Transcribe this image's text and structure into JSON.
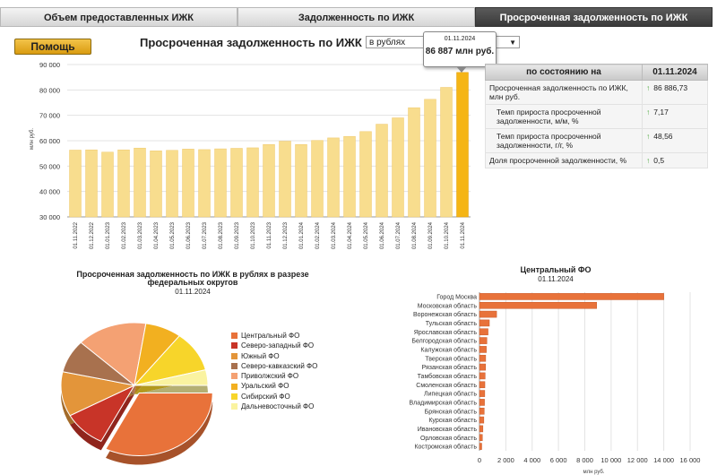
{
  "tabs": [
    {
      "label": "Объем предоставленных ИЖК"
    },
    {
      "label": "Задолженность по ИЖК"
    },
    {
      "label": "Просроченная задолженность по ИЖК"
    }
  ],
  "help_label": "Помощь",
  "title": "Просроченная задолженность по ИЖК",
  "currency": {
    "selected": "в рублях"
  },
  "tooltip": {
    "date": "01.11.2024",
    "value": "86 887 млн руб."
  },
  "info": {
    "header_label": "по состоянию на",
    "header_date": "01.11.2024",
    "rows": [
      {
        "label": "Просроченная задолженность по ИЖК, млн руб.",
        "value": "86 886,73"
      },
      {
        "label": "Темп прироста просроченной задолженности, м/м, %",
        "value": "7,17"
      },
      {
        "label": "Темп прироста просроченной задолженности, г/г, %",
        "value": "48,56"
      },
      {
        "label": "Доля просроченной задолженности, %",
        "value": "0,5"
      }
    ],
    "arrow": "↑"
  },
  "chart_data": [
    {
      "type": "bar",
      "ylabel": "млн руб.",
      "ylim": [
        30000,
        90000
      ],
      "yticks": [
        "30 000",
        "40 000",
        "50 000",
        "60 000",
        "70 000",
        "80 000",
        "90 000"
      ],
      "categories": [
        "01.11.2022",
        "01.12.2022",
        "01.01.2023",
        "01.02.2023",
        "01.03.2023",
        "01.04.2023",
        "01.05.2023",
        "01.06.2023",
        "01.07.2023",
        "01.08.2023",
        "01.09.2023",
        "01.10.2023",
        "01.11.2023",
        "01.12.2023",
        "01.01.2024",
        "01.02.2024",
        "01.03.2024",
        "01.04.2024",
        "01.05.2024",
        "01.06.2024",
        "01.07.2024",
        "01.08.2024",
        "01.09.2024",
        "01.10.2024",
        "01.11.2024"
      ],
      "values": [
        56300,
        56400,
        55500,
        56400,
        57100,
        56000,
        56200,
        56700,
        56500,
        56800,
        57000,
        57200,
        58500,
        59800,
        58500,
        60100,
        61100,
        61700,
        63600,
        66500,
        69000,
        73000,
        76300,
        81000,
        86887
      ],
      "highlight_color": "#f5b515",
      "bar_color": "#f8dd8e",
      "grid": true
    },
    {
      "type": "pie",
      "title": "Просроченная задолженность по ИЖК в рублях в разрезе федеральных округов",
      "date": "01.11.2024",
      "legend_position": "right",
      "slices": [
        {
          "name": "Центральный ФО",
          "value": 32.5,
          "color": "#e8723a"
        },
        {
          "name": "Северо-западный ФО",
          "value": 9.5,
          "color": "#c83428"
        },
        {
          "name": "Южный ФО",
          "value": 11.5,
          "color": "#e3953a"
        },
        {
          "name": "Северо-кавказский ФО",
          "value": 8.5,
          "color": "#a8714e"
        },
        {
          "name": "Приволжский ФО",
          "value": 15.5,
          "color": "#f4a173"
        },
        {
          "name": "Уральский ФО",
          "value": 8.0,
          "color": "#f2b020"
        },
        {
          "name": "Сибирский ФО",
          "value": 10.5,
          "color": "#f7d52a"
        },
        {
          "name": "Дальневосточный ФО",
          "value": 4.0,
          "color": "#faf3a0"
        }
      ]
    },
    {
      "type": "bar",
      "orientation": "horizontal",
      "title": "Центральный ФО",
      "date": "01.11.2024",
      "xlabel": "млн руб.",
      "xlim": [
        0,
        16000
      ],
      "xticks": [
        "0",
        "2 000",
        "4 000",
        "6 000",
        "8 000",
        "10 000",
        "12 000",
        "14 000",
        "16 000"
      ],
      "categories": [
        "Город Москва",
        "Московская область",
        "Воронежская область",
        "Тульская область",
        "Ярославская область",
        "Белгородская область",
        "Калужская область",
        "Тверская область",
        "Рязанская область",
        "Тамбовская область",
        "Смоленская область",
        "Липецкая область",
        "Владимирская область",
        "Брянская область",
        "Курская область",
        "Ивановская область",
        "Орловская область",
        "Костромская область"
      ],
      "values": [
        14000,
        8900,
        1300,
        750,
        650,
        560,
        520,
        470,
        460,
        430,
        410,
        400,
        380,
        360,
        330,
        260,
        220,
        170
      ],
      "bar_color": "#e8723a"
    }
  ]
}
